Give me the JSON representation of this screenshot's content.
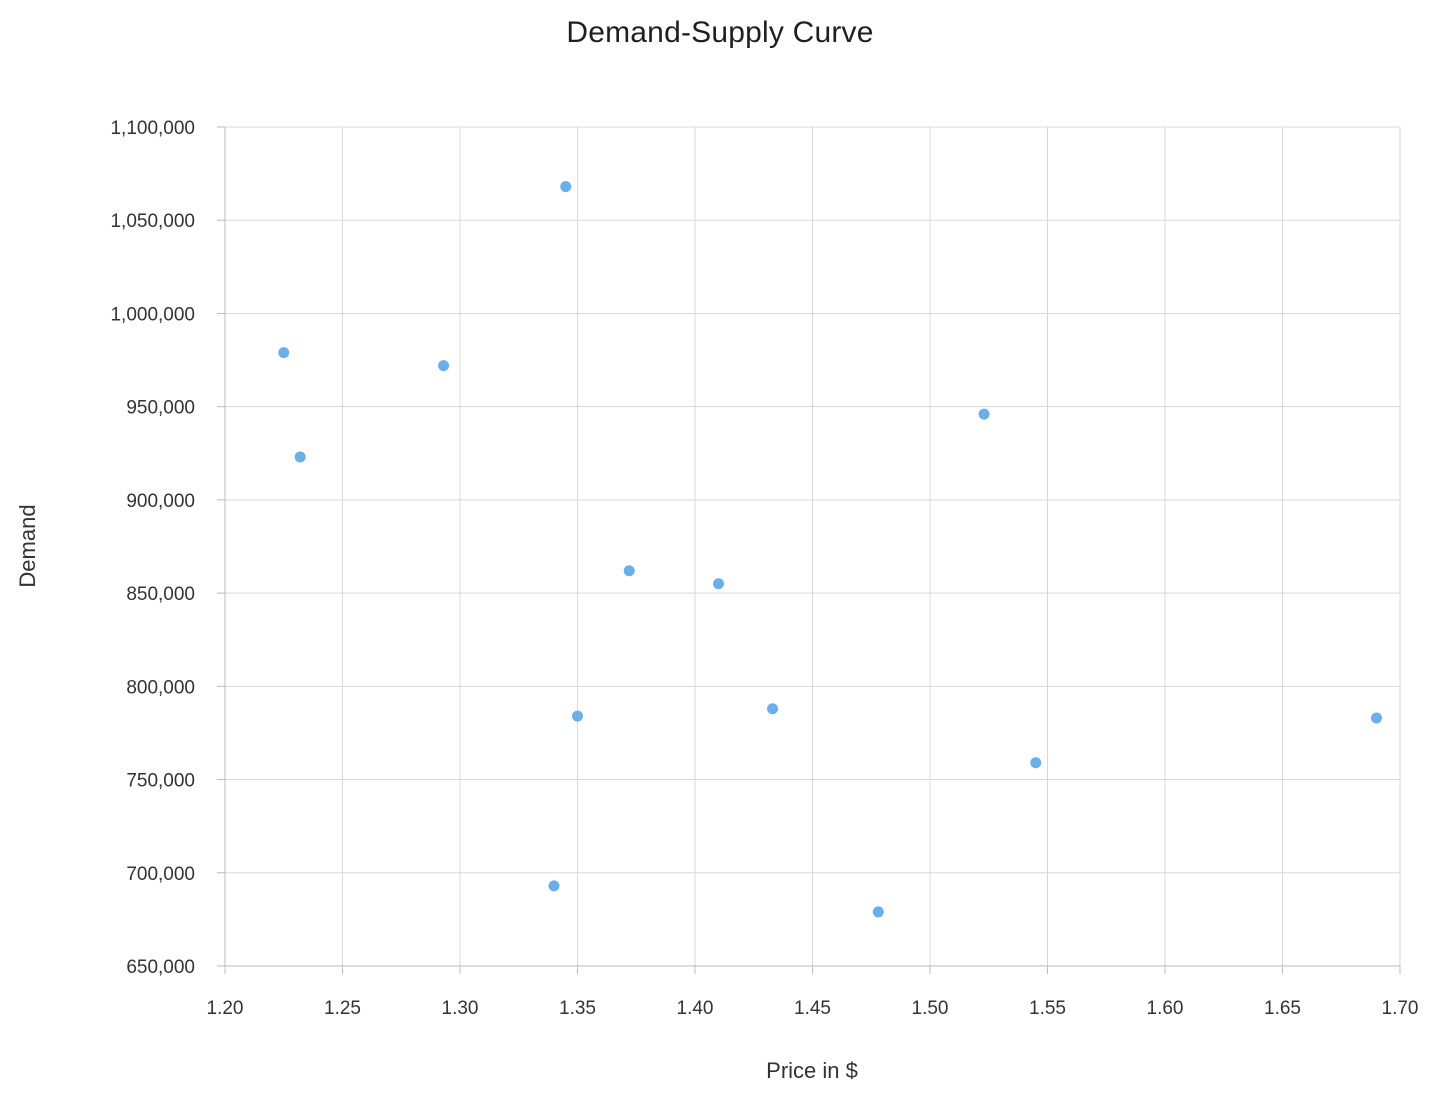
{
  "chart_data": {
    "type": "scatter",
    "title": "Demand-Supply Curve",
    "xlabel": "Price in $",
    "ylabel": "Demand",
    "xlim": [
      1.2,
      1.7
    ],
    "ylim": [
      650000,
      1100000
    ],
    "x_ticks": [
      1.2,
      1.25,
      1.3,
      1.35,
      1.4,
      1.45,
      1.5,
      1.55,
      1.6,
      1.65,
      1.7
    ],
    "y_ticks": [
      650000,
      700000,
      750000,
      800000,
      850000,
      900000,
      950000,
      1000000,
      1050000,
      1100000
    ],
    "grid": true,
    "legend": "none",
    "point_color": "#6caee9",
    "grid_color": "#d8d8d8",
    "axis_color": "#bbbbbb",
    "points": [
      {
        "x": 1.225,
        "y": 979000
      },
      {
        "x": 1.232,
        "y": 923000
      },
      {
        "x": 1.293,
        "y": 972000
      },
      {
        "x": 1.34,
        "y": 693000
      },
      {
        "x": 1.345,
        "y": 1068000
      },
      {
        "x": 1.35,
        "y": 784000
      },
      {
        "x": 1.372,
        "y": 862000
      },
      {
        "x": 1.41,
        "y": 855000
      },
      {
        "x": 1.433,
        "y": 788000
      },
      {
        "x": 1.478,
        "y": 679000
      },
      {
        "x": 1.523,
        "y": 946000
      },
      {
        "x": 1.545,
        "y": 759000
      },
      {
        "x": 1.69,
        "y": 783000
      }
    ]
  }
}
